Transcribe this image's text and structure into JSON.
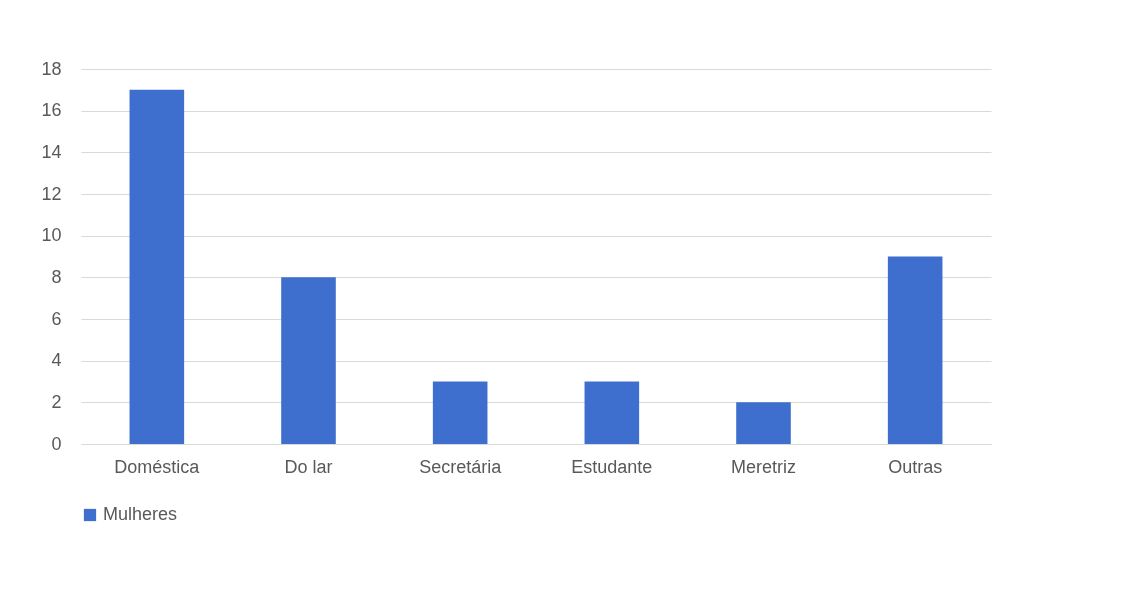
{
  "chart_data": {
    "type": "bar",
    "categories": [
      "Doméstica",
      "Do lar",
      "Secretária",
      "Estudante",
      "Meretriz",
      "Outras"
    ],
    "series": [
      {
        "name": "Mulheres",
        "color": "#3f6fce",
        "values": [
          17,
          8,
          3,
          3,
          2,
          9
        ]
      }
    ],
    "ylim": [
      0,
      18
    ],
    "yticks": [
      0,
      2,
      4,
      6,
      8,
      10,
      12,
      14,
      16,
      18
    ],
    "grid": true,
    "legend": "bottom"
  }
}
